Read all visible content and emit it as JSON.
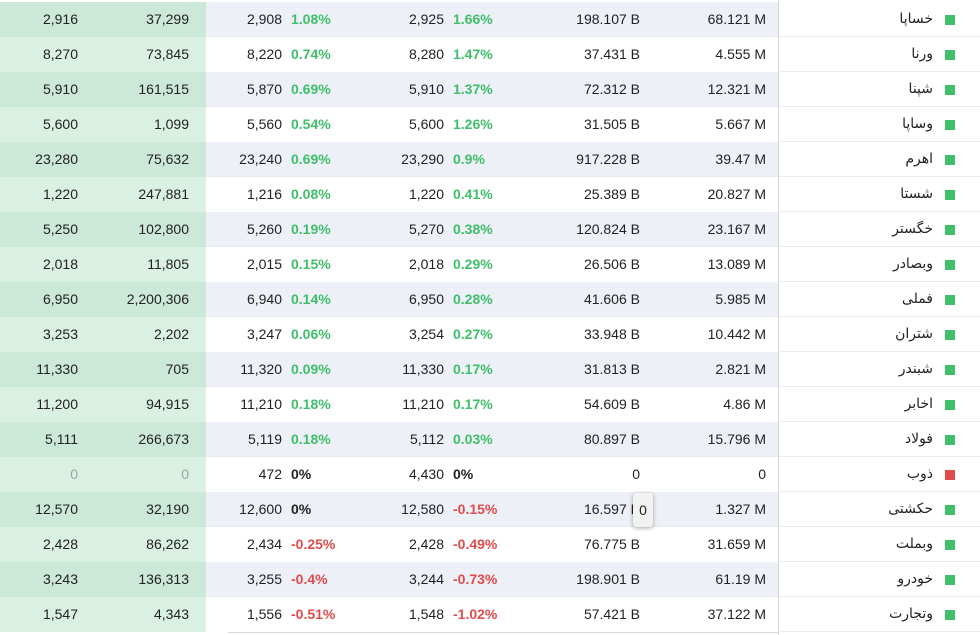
{
  "colors": {
    "positive": "#3fbf6a",
    "negative": "#e04b4b",
    "status_active": "#3fbf6a",
    "status_halted": "#e04b4b"
  },
  "tooltip_value": "0",
  "rows": [
    {
      "name": "خساپا",
      "status": "active",
      "tvol": "68.121 M",
      "value": "198.107 B",
      "close_pct": "1.66%",
      "close_dir": "pos",
      "close": "2,925",
      "last_pct": "1.08%",
      "last_dir": "pos",
      "last": "2,908",
      "vol": "37,299",
      "buy": "2,916"
    },
    {
      "name": "ورنا",
      "status": "active",
      "tvol": "4.555 M",
      "value": "37.431 B",
      "close_pct": "1.47%",
      "close_dir": "pos",
      "close": "8,280",
      "last_pct": "0.74%",
      "last_dir": "pos",
      "last": "8,220",
      "vol": "73,845",
      "buy": "8,270"
    },
    {
      "name": "شپنا",
      "status": "active",
      "tvol": "12.321 M",
      "value": "72.312 B",
      "close_pct": "1.37%",
      "close_dir": "pos",
      "close": "5,910",
      "last_pct": "0.69%",
      "last_dir": "pos",
      "last": "5,870",
      "vol": "161,515",
      "buy": "5,910"
    },
    {
      "name": "وساپا",
      "status": "active",
      "tvol": "5.667 M",
      "value": "31.505 B",
      "close_pct": "1.26%",
      "close_dir": "pos",
      "close": "5,600",
      "last_pct": "0.54%",
      "last_dir": "pos",
      "last": "5,560",
      "vol": "1,099",
      "buy": "5,600"
    },
    {
      "name": "اهرم",
      "status": "active",
      "tvol": "39.47 M",
      "value": "917.228 B",
      "close_pct": "0.9%",
      "close_dir": "pos",
      "close": "23,290",
      "last_pct": "0.69%",
      "last_dir": "pos",
      "last": "23,240",
      "vol": "75,632",
      "buy": "23,280"
    },
    {
      "name": "شستا",
      "status": "active",
      "tvol": "20.827 M",
      "value": "25.389 B",
      "close_pct": "0.41%",
      "close_dir": "pos",
      "close": "1,220",
      "last_pct": "0.08%",
      "last_dir": "pos",
      "last": "1,216",
      "vol": "247,881",
      "buy": "1,220"
    },
    {
      "name": "خگستر",
      "status": "active",
      "tvol": "23.167 M",
      "value": "120.824 B",
      "close_pct": "0.38%",
      "close_dir": "pos",
      "close": "5,270",
      "last_pct": "0.19%",
      "last_dir": "pos",
      "last": "5,260",
      "vol": "102,800",
      "buy": "5,250"
    },
    {
      "name": "وبصادر",
      "status": "active",
      "tvol": "13.089 M",
      "value": "26.506 B",
      "close_pct": "0.29%",
      "close_dir": "pos",
      "close": "2,018",
      "last_pct": "0.15%",
      "last_dir": "pos",
      "last": "2,015",
      "vol": "11,805",
      "buy": "2,018"
    },
    {
      "name": "فملی",
      "status": "active",
      "tvol": "5.985 M",
      "value": "41.606 B",
      "close_pct": "0.28%",
      "close_dir": "pos",
      "close": "6,950",
      "last_pct": "0.14%",
      "last_dir": "pos",
      "last": "6,940",
      "vol": "2,200,306",
      "buy": "6,950"
    },
    {
      "name": "شتران",
      "status": "active",
      "tvol": "10.442 M",
      "value": "33.948 B",
      "close_pct": "0.27%",
      "close_dir": "pos",
      "close": "3,254",
      "last_pct": "0.06%",
      "last_dir": "pos",
      "last": "3,247",
      "vol": "2,202",
      "buy": "3,253"
    },
    {
      "name": "شبندر",
      "status": "active",
      "tvol": "2.821 M",
      "value": "31.813 B",
      "close_pct": "0.17%",
      "close_dir": "pos",
      "close": "11,330",
      "last_pct": "0.09%",
      "last_dir": "pos",
      "last": "11,320",
      "vol": "705",
      "buy": "11,330"
    },
    {
      "name": "اخابر",
      "status": "active",
      "tvol": "4.86 M",
      "value": "54.609 B",
      "close_pct": "0.17%",
      "close_dir": "pos",
      "close": "11,210",
      "last_pct": "0.18%",
      "last_dir": "pos",
      "last": "11,210",
      "vol": "94,915",
      "buy": "11,200"
    },
    {
      "name": "فولاد",
      "status": "active",
      "tvol": "15.796 M",
      "value": "80.897 B",
      "close_pct": "0.03%",
      "close_dir": "pos",
      "close": "5,112",
      "last_pct": "0.18%",
      "last_dir": "pos",
      "last": "5,119",
      "vol": "266,673",
      "buy": "5,111"
    },
    {
      "name": "ذوب",
      "status": "halted",
      "tvol": "0",
      "value": "0",
      "close_pct": "0%",
      "close_dir": "zero",
      "close": "4,430",
      "last_pct": "0%",
      "last_dir": "zero",
      "last": "472",
      "vol": "0",
      "buy": "0",
      "muted": true
    },
    {
      "name": "حکشتی",
      "status": "active",
      "tvol": "1.327 M",
      "value": "16.597 B",
      "close_pct": "-0.15%",
      "close_dir": "neg",
      "close": "12,580",
      "last_pct": "0%",
      "last_dir": "zero",
      "last": "12,600",
      "vol": "32,190",
      "buy": "12,570"
    },
    {
      "name": "وبملت",
      "status": "active",
      "tvol": "31.659 M",
      "value": "76.775 B",
      "close_pct": "-0.49%",
      "close_dir": "neg",
      "close": "2,428",
      "last_pct": "-0.25%",
      "last_dir": "neg",
      "last": "2,434",
      "vol": "86,262",
      "buy": "2,428"
    },
    {
      "name": "خودرو",
      "status": "active",
      "tvol": "61.19 M",
      "value": "198.901 B",
      "close_pct": "-0.73%",
      "close_dir": "neg",
      "close": "3,244",
      "last_pct": "-0.4%",
      "last_dir": "neg",
      "last": "3,255",
      "vol": "136,313",
      "buy": "3,243"
    },
    {
      "name": "وتجارت",
      "status": "active",
      "tvol": "37.122 M",
      "value": "57.421 B",
      "close_pct": "-1.02%",
      "close_dir": "neg",
      "close": "1,548",
      "last_pct": "-0.51%",
      "last_dir": "neg",
      "last": "1,556",
      "vol": "4,343",
      "buy": "1,547"
    }
  ]
}
